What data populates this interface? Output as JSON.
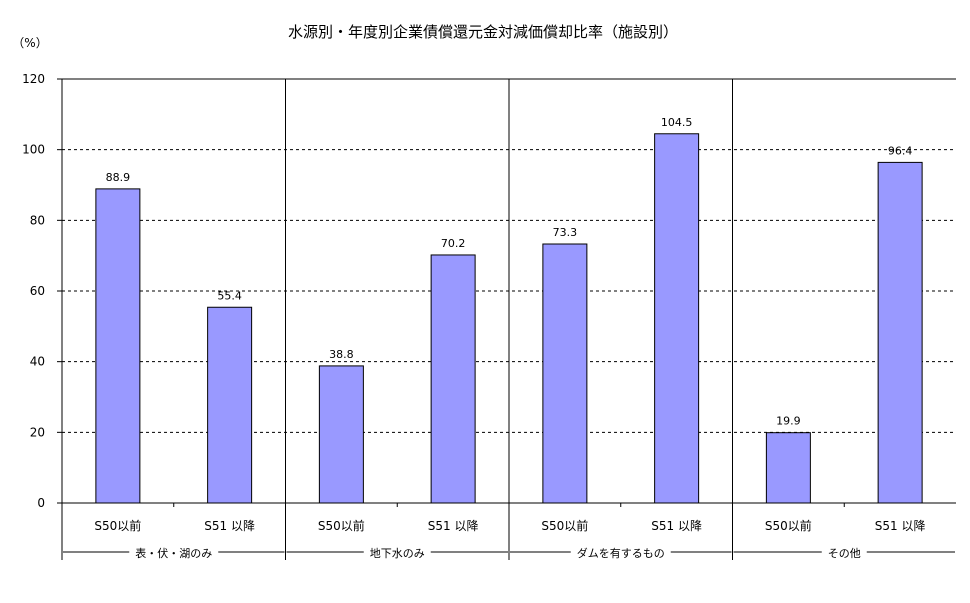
{
  "chart_data": {
    "type": "bar",
    "title": "水源別・年度別企業債償還元金対減価償却比率（施設別）",
    "unit_label": "（%）",
    "ylim": [
      0,
      120
    ],
    "yticks": [
      0,
      20,
      40,
      60,
      80,
      100,
      120
    ],
    "grid": "horizontal-dashed",
    "bar_color": "#9999ff",
    "groups": [
      {
        "label": "表・伏・湖のみ",
        "categories": [
          "S50以前",
          "S51 以降"
        ],
        "values": [
          88.9,
          55.4
        ],
        "value_labels": [
          "88.9",
          "55.4"
        ]
      },
      {
        "label": "地下水のみ",
        "categories": [
          "S50以前",
          "S51 以降"
        ],
        "values": [
          38.8,
          70.2
        ],
        "value_labels": [
          "38.8",
          "70.2"
        ]
      },
      {
        "label": "ダムを有するもの",
        "categories": [
          "S50以前",
          "S51 以降"
        ],
        "values": [
          73.3,
          104.5
        ],
        "value_labels": [
          "73.3",
          "104.5"
        ]
      },
      {
        "label": "その他",
        "categories": [
          "S50以前",
          "S51 以降"
        ],
        "values": [
          19.9,
          96.4
        ],
        "value_labels": [
          "19.9",
          "96.4"
        ]
      }
    ]
  }
}
